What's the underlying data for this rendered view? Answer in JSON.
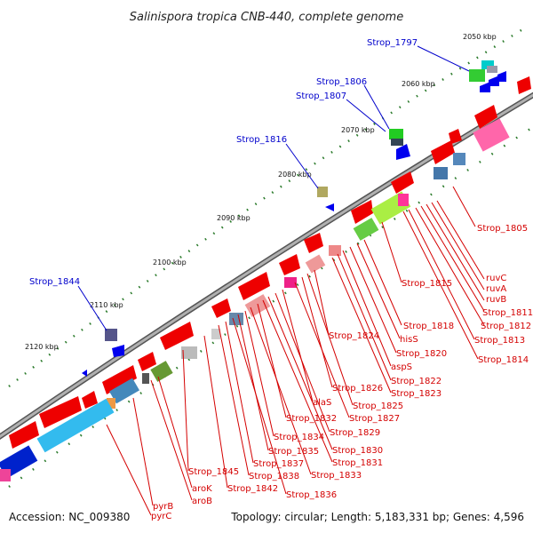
{
  "title": "Salinispora tropica CNB-440, complete genome",
  "accession": "Accession: NC_009380",
  "topology": "Topology: circular; Length: 5,183,331 bp; Genes: 4,596",
  "colors": {
    "backbone": "#888888",
    "forward_gene": "#ee0000",
    "reverse_gene": "#0000ee",
    "tick": "#2a7a2a",
    "label_red": "#d40000",
    "label_blue": "#0000cc"
  },
  "scale_labels": [
    "2050 kbp",
    "2060 kbp",
    "2070 kbp",
    "2080 kbp",
    "2090 kbp",
    "2100 kbp",
    "2110 kbp",
    "2120 kbp"
  ],
  "blue_labels": [
    "Strop_1797",
    "Strop_1806",
    "Strop_1807",
    "Strop_1816",
    "Strop_1844"
  ],
  "red_labels": [
    "Strop_1805",
    "ruvC",
    "ruvA",
    "ruvB",
    "Strop_1811",
    "Strop_1812",
    "Strop_1813",
    "Strop_1814",
    "Strop_1815",
    "Strop_1818",
    "hisS",
    "Strop_1820",
    "aspS",
    "Strop_1822",
    "Strop_1823",
    "Strop_1824",
    "Strop_1825",
    "Strop_1826",
    "Strop_1827",
    "alaS",
    "Strop_1829",
    "Strop_1830",
    "Strop_1831",
    "Strop_1832",
    "Strop_1833",
    "Strop_1834",
    "Strop_1835",
    "Strop_1836",
    "Strop_1837",
    "Strop_1838",
    "Strop_1842",
    "Strop_1845",
    "aroK",
    "aroB",
    "pyrB",
    "pyrC"
  ]
}
